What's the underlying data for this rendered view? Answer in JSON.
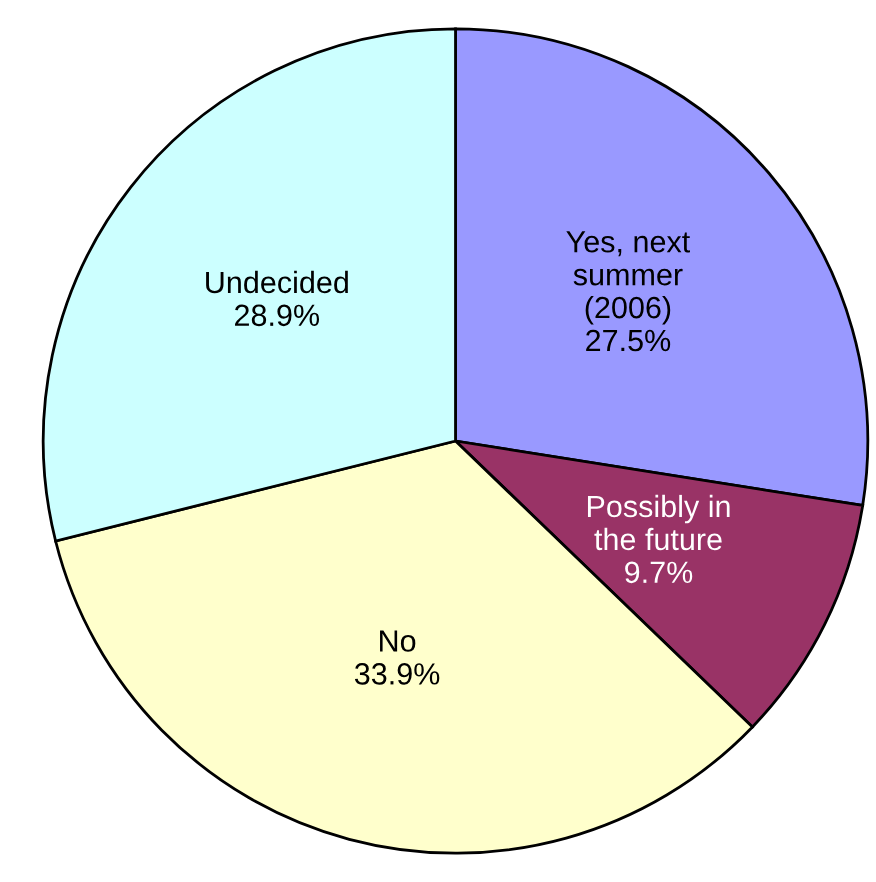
{
  "chart_data": {
    "type": "pie",
    "categories": [
      "Yes, next\nsummer\n(2006)",
      "Possibly in\nthe future",
      "No",
      "Undecided"
    ],
    "values": [
      27.5,
      9.7,
      33.9,
      28.9
    ],
    "value_labels": [
      "27.5%",
      "9.7%",
      "33.9%",
      "28.9%"
    ],
    "colors": [
      "#9999ff",
      "#993366",
      "#ffffcc",
      "#ccffff"
    ],
    "legend": false
  }
}
